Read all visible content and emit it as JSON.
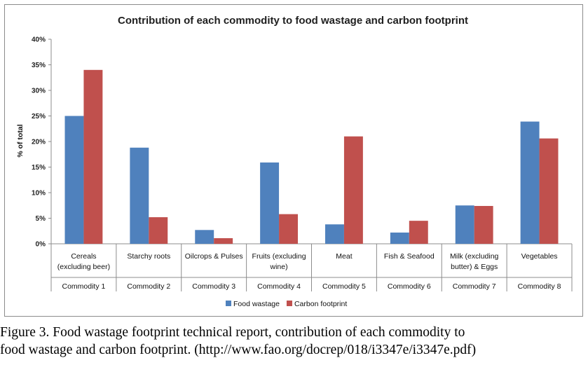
{
  "chart_data": {
    "type": "bar",
    "title": "Contribution of each commodity to food wastage and carbon footprint",
    "ylabel": "% of total",
    "xlabel": "",
    "ylim": [
      0,
      40
    ],
    "yticks": [
      "0%",
      "5%",
      "10%",
      "15%",
      "20%",
      "25%",
      "30%",
      "35%",
      "40%"
    ],
    "grid": false,
    "legend_position": "bottom",
    "categories": [
      [
        "Cereals",
        "(excluding beer)"
      ],
      [
        "Starchy roots"
      ],
      [
        "Oilcrops & Pulses"
      ],
      [
        "Fruits (excluding",
        "wine)"
      ],
      [
        "Meat"
      ],
      [
        "Fish & Seafood"
      ],
      [
        "Milk (excluding",
        "butter) & Eggs"
      ],
      [
        "Vegetables"
      ]
    ],
    "groups": [
      "Commodity 1",
      "Commodity 2",
      "Commodity 3",
      "Commodity 4",
      "Commodity 5",
      "Commodity 6",
      "Commodity 7",
      "Commodity 8"
    ],
    "series": [
      {
        "name": "Food wastage",
        "color": "#4f81bd",
        "values": [
          25.0,
          18.8,
          2.7,
          15.9,
          3.8,
          2.2,
          7.5,
          23.9
        ]
      },
      {
        "name": "Carbon footprint",
        "color": "#c0504d",
        "values": [
          34.0,
          5.2,
          1.1,
          5.8,
          21.0,
          4.5,
          7.4,
          20.6
        ]
      }
    ]
  },
  "caption": {
    "line1": "Figure 3.  Food wastage footprint technical report, contribution of each commodity to",
    "line2": "food wastage and carbon footprint. (http://www.fao.org/docrep/018/i3347e/i3347e.pdf)"
  }
}
